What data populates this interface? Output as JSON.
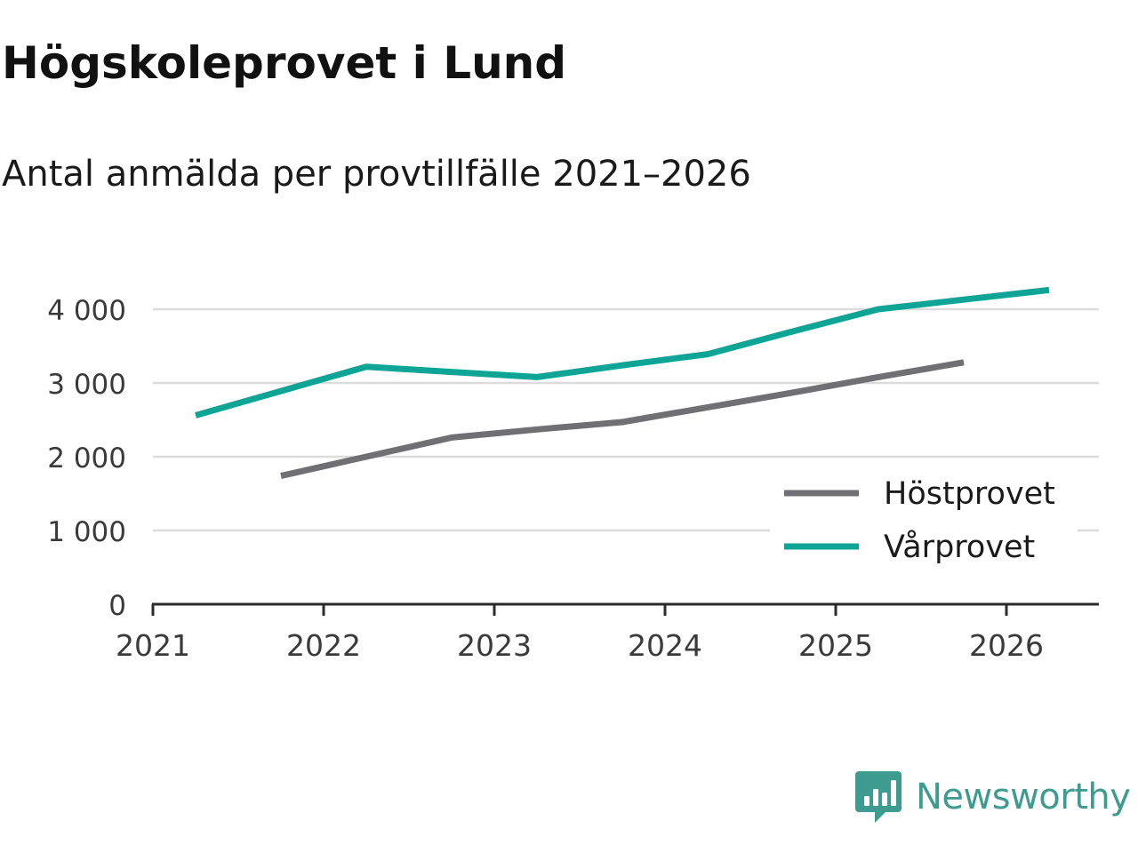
{
  "title": "Högskoleprovet i Lund",
  "subtitle": "Antal anmälda per provtillfälle 2021–2026",
  "brand": {
    "name": "Newsworthy",
    "color": "#3e9b90"
  },
  "chart_data": {
    "type": "line",
    "title": "Högskoleprovet i Lund",
    "subtitle": "Antal anmälda per provtillfälle 2021–2026",
    "xlabel": "",
    "ylabel": "",
    "xlim": [
      2021,
      2026.55
    ],
    "ylim": [
      0,
      4000
    ],
    "x_ticks": [
      2021,
      2022,
      2023,
      2024,
      2025,
      2026
    ],
    "x_tick_labels": [
      "2021",
      "2022",
      "2023",
      "2024",
      "2025",
      "2026"
    ],
    "y_ticks": [
      0,
      1000,
      2000,
      3000,
      4000
    ],
    "y_tick_labels": [
      "0",
      "1 000",
      "2 000",
      "3 000",
      "4 000"
    ],
    "grid": true,
    "legend_position": "bottom-right",
    "series": [
      {
        "name": "Höstprovet",
        "color": "#707074",
        "x": [
          2021.75,
          2022.25,
          2022.75,
          2023.25,
          2023.75,
          2024.25,
          2024.75,
          2025.25,
          2025.75
        ],
        "values": [
          1740,
          2000,
          2260,
          2370,
          2470,
          2670,
          2870,
          3080,
          3280
        ]
      },
      {
        "name": "Vårprovet",
        "color": "#0fa596",
        "x": [
          2021.25,
          2021.75,
          2022.25,
          2022.75,
          2023.25,
          2023.75,
          2024.25,
          2024.75,
          2025.25,
          2025.75,
          2026.25
        ],
        "values": [
          2560,
          2890,
          3220,
          3150,
          3080,
          3240,
          3390,
          3700,
          4000,
          4130,
          4260
        ]
      }
    ]
  }
}
